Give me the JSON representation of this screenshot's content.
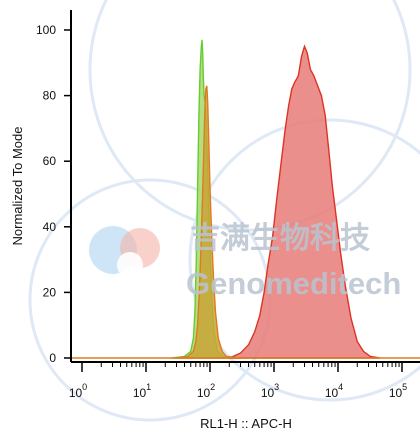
{
  "watermark": {
    "name_cn": "吉满生物科技",
    "name_en": "Genomeditech"
  },
  "chart_data": {
    "type": "area",
    "xlabel": "RL1-H :: APC-H",
    "ylabel": "Normalized To Mode",
    "x_scale": "log",
    "xlim": [
      0,
      100000
    ],
    "ylim": [
      0,
      105
    ],
    "x_ticks": [
      {
        "value": 1,
        "base": "10",
        "exp": "0"
      },
      {
        "value": 10,
        "base": "10",
        "exp": "1"
      },
      {
        "value": 100,
        "base": "10",
        "exp": "2"
      },
      {
        "value": 1000,
        "base": "10",
        "exp": "3"
      },
      {
        "value": 10000,
        "base": "10",
        "exp": "4"
      },
      {
        "value": 100000,
        "base": "10",
        "exp": "5"
      }
    ],
    "y_ticks": [
      0,
      20,
      40,
      60,
      80,
      100
    ],
    "series": [
      {
        "color": "#66cc33",
        "fill": "#a7d96b",
        "points": [
          [
            25,
            0
          ],
          [
            40,
            0.5
          ],
          [
            50,
            2
          ],
          [
            55,
            6
          ],
          [
            58,
            14
          ],
          [
            61,
            30
          ],
          [
            64,
            52
          ],
          [
            67,
            74
          ],
          [
            70,
            88
          ],
          [
            73,
            95
          ],
          [
            75,
            97
          ],
          [
            77,
            93
          ],
          [
            79,
            85
          ],
          [
            81,
            80
          ],
          [
            84,
            78
          ],
          [
            88,
            70
          ],
          [
            93,
            55
          ],
          [
            98,
            38
          ],
          [
            105,
            20
          ],
          [
            115,
            8
          ],
          [
            130,
            2
          ],
          [
            160,
            0.5
          ],
          [
            300,
            0
          ]
        ]
      },
      {
        "color": "#dd3322",
        "fill": "#e87b78",
        "points": [
          [
            200,
            0
          ],
          [
            300,
            1.5
          ],
          [
            400,
            4
          ],
          [
            500,
            8
          ],
          [
            600,
            13
          ],
          [
            700,
            20
          ],
          [
            800,
            28
          ],
          [
            950,
            37
          ],
          [
            1100,
            48
          ],
          [
            1300,
            60
          ],
          [
            1500,
            70
          ],
          [
            1700,
            77
          ],
          [
            1900,
            82
          ],
          [
            2100,
            84
          ],
          [
            2400,
            86
          ],
          [
            2700,
            92
          ],
          [
            3000,
            95
          ],
          [
            3300,
            93
          ],
          [
            3700,
            88
          ],
          [
            4200,
            86
          ],
          [
            4800,
            83
          ],
          [
            5500,
            80
          ],
          [
            6300,
            74
          ],
          [
            7200,
            63
          ],
          [
            8200,
            52
          ],
          [
            9500,
            42
          ],
          [
            11000,
            32
          ],
          [
            13000,
            22
          ],
          [
            16000,
            12
          ],
          [
            20000,
            5
          ],
          [
            25000,
            2
          ],
          [
            32000,
            0.5
          ],
          [
            45000,
            0
          ]
        ]
      },
      {
        "color": "#e07b22",
        "fill": "#c9a436",
        "points": [
          [
            30,
            0
          ],
          [
            45,
            0.5
          ],
          [
            55,
            2
          ],
          [
            60,
            5
          ],
          [
            64,
            10
          ],
          [
            68,
            20
          ],
          [
            72,
            33
          ],
          [
            76,
            48
          ],
          [
            80,
            63
          ],
          [
            83,
            75
          ],
          [
            86,
            82
          ],
          [
            89,
            83
          ],
          [
            92,
            78
          ],
          [
            96,
            65
          ],
          [
            100,
            52
          ],
          [
            106,
            38
          ],
          [
            113,
            25
          ],
          [
            122,
            14
          ],
          [
            135,
            6
          ],
          [
            155,
            2
          ],
          [
            180,
            0.5
          ],
          [
            300,
            0
          ]
        ]
      }
    ]
  }
}
